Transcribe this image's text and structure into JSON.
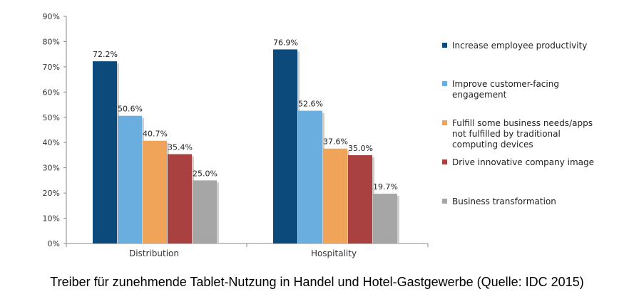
{
  "chart_data": {
    "type": "bar",
    "categories": [
      "Distribution",
      "Hospitality"
    ],
    "series": [
      {
        "name": "Increase employee productivity",
        "color": "#0d4a7c",
        "values": [
          72.2,
          76.9
        ],
        "labels": [
          "72.2%",
          "76.9%"
        ]
      },
      {
        "name": "Improve customer-facing engagement",
        "color": "#6aaee0",
        "values": [
          50.6,
          52.6
        ],
        "labels": [
          "50.6%",
          "52.6%"
        ]
      },
      {
        "name": "Fulfill some business needs/apps not fulfilled by traditional computing devices",
        "color": "#f0a45a",
        "values": [
          40.7,
          37.6
        ],
        "labels": [
          "40.7%",
          "37.6%"
        ]
      },
      {
        "name": "Drive innovative company image",
        "color": "#a8413f",
        "values": [
          35.4,
          35.0
        ],
        "labels": [
          "35.4%",
          "35.0%"
        ]
      },
      {
        "name": "Business transformation",
        "color": "#a6a6a6",
        "values": [
          25.0,
          19.7
        ],
        "labels": [
          "25.0%",
          "19.7%"
        ]
      }
    ],
    "legend_lines": [
      [
        "Increase employee productivity"
      ],
      [
        "Improve customer-facing",
        "engagement"
      ],
      [
        "Fulfill some business needs/apps",
        "not fulfilled by traditional",
        "computing devices"
      ],
      [
        "Drive innovative company image"
      ],
      [
        "Business transformation"
      ]
    ],
    "yticks": [
      "0%",
      "10%",
      "20%",
      "30%",
      "40%",
      "50%",
      "60%",
      "70%",
      "80%",
      "90%"
    ],
    "ylim": [
      0,
      90
    ],
    "grid": false,
    "legend_position": "right"
  },
  "caption": "Treiber für zunehmende Tablet-Nutzung in Handel und Hotel-Gastgewerbe (Quelle: IDC 2015)"
}
